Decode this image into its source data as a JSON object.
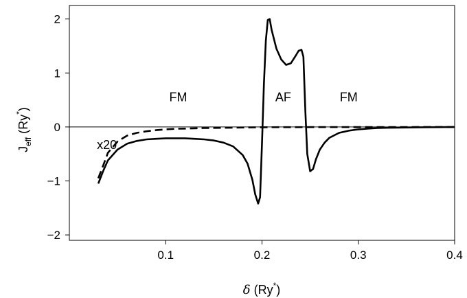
{
  "chart_data": {
    "type": "line",
    "xlabel": {
      "symbol": "δ",
      "unit_open": " (Ry",
      "unit_sup": "*",
      "unit_close": ")"
    },
    "ylabel": {
      "main": "J",
      "sub": "eff",
      "unit_open": " (Ry",
      "unit_sup": "*",
      "unit_close": ")"
    },
    "xlim": [
      0.0,
      0.4
    ],
    "ylim": [
      -2.1,
      2.25
    ],
    "x_ticks": [
      {
        "value": 0.1,
        "label": "0.1"
      },
      {
        "value": 0.2,
        "label": "0.2"
      },
      {
        "value": 0.3,
        "label": "0.3"
      },
      {
        "value": 0.4,
        "label": "0.4"
      }
    ],
    "y_ticks": [
      {
        "value": -2,
        "label": "−2"
      },
      {
        "value": -1,
        "label": "−1"
      },
      {
        "value": 0,
        "label": "0"
      },
      {
        "value": 1,
        "label": "1"
      },
      {
        "value": 2,
        "label": "2"
      }
    ],
    "zero_line": true,
    "grid": false,
    "annotations": [
      {
        "text": "FM",
        "x": 0.113,
        "y": 0.55
      },
      {
        "text": "AF",
        "x": 0.222,
        "y": 0.55
      },
      {
        "text": "FM",
        "x": 0.29,
        "y": 0.55
      },
      {
        "text": "x20",
        "x": 0.039,
        "y": -0.33
      }
    ],
    "series": [
      {
        "style": "solid",
        "x": [
          0.03,
          0.035,
          0.04,
          0.05,
          0.06,
          0.07,
          0.08,
          0.09,
          0.1,
          0.11,
          0.12,
          0.13,
          0.14,
          0.15,
          0.16,
          0.17,
          0.18,
          0.185,
          0.19,
          0.193,
          0.196,
          0.198,
          0.2,
          0.202,
          0.204,
          0.206,
          0.208,
          0.21,
          0.215,
          0.22,
          0.225,
          0.23,
          0.235,
          0.238,
          0.241,
          0.243,
          0.245,
          0.247,
          0.25,
          0.253,
          0.256,
          0.26,
          0.265,
          0.27,
          0.28,
          0.29,
          0.3,
          0.31,
          0.32,
          0.33,
          0.35,
          0.37,
          0.4
        ],
        "y": [
          -1.05,
          -0.82,
          -0.62,
          -0.42,
          -0.31,
          -0.26,
          -0.23,
          -0.22,
          -0.21,
          -0.21,
          -0.21,
          -0.22,
          -0.23,
          -0.25,
          -0.29,
          -0.36,
          -0.52,
          -0.68,
          -0.98,
          -1.25,
          -1.42,
          -1.3,
          -0.3,
          0.8,
          1.6,
          1.98,
          2.0,
          1.8,
          1.45,
          1.25,
          1.15,
          1.18,
          1.32,
          1.41,
          1.43,
          1.3,
          0.3,
          -0.5,
          -0.82,
          -0.78,
          -0.6,
          -0.42,
          -0.29,
          -0.2,
          -0.11,
          -0.07,
          -0.045,
          -0.03,
          -0.02,
          -0.015,
          -0.01,
          -0.005,
          0.0
        ]
      },
      {
        "style": "dashed",
        "x": [
          0.03,
          0.035,
          0.04,
          0.05,
          0.06,
          0.07,
          0.08,
          0.09,
          0.1,
          0.11,
          0.12,
          0.14,
          0.16,
          0.18,
          0.2,
          0.25,
          0.3,
          0.35,
          0.4
        ],
        "y": [
          -0.95,
          -0.72,
          -0.48,
          -0.27,
          -0.16,
          -0.11,
          -0.08,
          -0.06,
          -0.045,
          -0.035,
          -0.03,
          -0.02,
          -0.015,
          -0.01,
          -0.005,
          -0.003,
          -0.002,
          -0.001,
          0.0
        ]
      }
    ]
  }
}
